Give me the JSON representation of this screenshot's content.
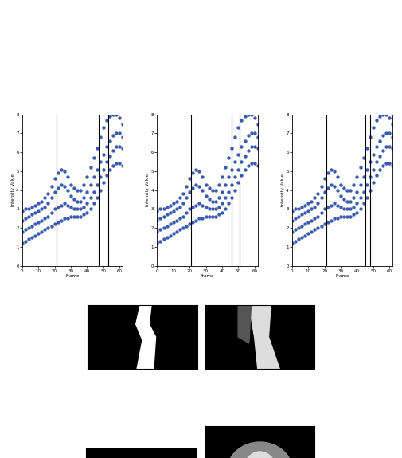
{
  "chart_data": [
    {
      "type": "scatter",
      "x_label": "Frame",
      "y_label": "Intensity Value",
      "x": [
        0,
        2,
        4,
        6,
        8,
        10,
        12,
        14,
        16,
        18,
        20,
        22,
        24,
        26,
        28,
        30,
        32,
        34,
        36,
        38,
        40,
        42,
        44,
        46,
        48,
        50,
        52,
        54,
        56,
        58,
        60,
        62
      ],
      "series": [
        {
          "color": "#3a5bb0",
          "marker": "o",
          "values": [
            1.2,
            1.3,
            1.4,
            1.5,
            1.6,
            1.7,
            1.8,
            1.9,
            2.0,
            2.1,
            2.2,
            2.3,
            2.4,
            2.5,
            2.5,
            2.6,
            2.6,
            2.6,
            2.6,
            2.7,
            2.8,
            3.0,
            3.3,
            3.6,
            4.0,
            4.4,
            4.8,
            5.1,
            5.3,
            5.4,
            5.4,
            5.3
          ]
        },
        {
          "color": "#3a5bb0",
          "marker": "o",
          "values": [
            1.8,
            1.9,
            2.0,
            2.1,
            2.2,
            2.3,
            2.4,
            2.5,
            2.6,
            2.8,
            3.0,
            3.1,
            3.2,
            3.3,
            3.2,
            3.1,
            3.0,
            3.0,
            3.0,
            3.1,
            3.3,
            3.6,
            3.9,
            4.3,
            4.7,
            5.1,
            5.5,
            5.8,
            6.1,
            6.3,
            6.3,
            6.2
          ]
        },
        {
          "color": "#3a5bb0",
          "marker": "o",
          "values": [
            2.4,
            2.5,
            2.6,
            2.7,
            2.8,
            2.9,
            3.0,
            3.1,
            3.3,
            3.6,
            3.9,
            4.1,
            4.3,
            4.2,
            4.0,
            3.7,
            3.5,
            3.4,
            3.4,
            3.6,
            3.9,
            4.3,
            4.7,
            5.1,
            5.5,
            5.9,
            6.3,
            6.6,
            6.9,
            7.0,
            7.0,
            6.8
          ]
        },
        {
          "color": "#3a5bb0",
          "marker": "o",
          "values": [
            2.9,
            3.0,
            3.0,
            3.1,
            3.2,
            3.3,
            3.4,
            3.6,
            3.8,
            4.2,
            4.6,
            4.9,
            5.1,
            5.0,
            4.7,
            4.3,
            4.1,
            4.0,
            4.0,
            4.3,
            4.7,
            5.2,
            5.7,
            6.2,
            6.8,
            7.3,
            7.7,
            7.9,
            8.0,
            8.0,
            7.8,
            7.5
          ]
        }
      ],
      "vlines": [
        21,
        47,
        53
      ],
      "xlim": [
        0,
        62
      ],
      "xticks": [
        0,
        10,
        20,
        30,
        40,
        50,
        60
      ],
      "ylim": [
        0,
        8
      ],
      "yticks": [
        0,
        1,
        2,
        3,
        4,
        5,
        6,
        7,
        8
      ]
    },
    {
      "type": "scatter",
      "x_label": "Frame",
      "y_label": "Intensity Value",
      "x": [
        0,
        2,
        4,
        6,
        8,
        10,
        12,
        14,
        16,
        18,
        20,
        22,
        24,
        26,
        28,
        30,
        32,
        34,
        36,
        38,
        40,
        42,
        44,
        46,
        48,
        50,
        52,
        54,
        56,
        58,
        60,
        62
      ],
      "series": [
        {
          "color": "#3a5bb0",
          "marker": "o",
          "values": [
            1.2,
            1.3,
            1.4,
            1.5,
            1.6,
            1.7,
            1.8,
            1.9,
            2.0,
            2.1,
            2.2,
            2.3,
            2.4,
            2.5,
            2.5,
            2.6,
            2.6,
            2.6,
            2.6,
            2.7,
            2.8,
            3.0,
            3.3,
            3.6,
            4.0,
            4.4,
            4.8,
            5.1,
            5.3,
            5.4,
            5.4,
            5.3
          ]
        },
        {
          "color": "#3a5bb0",
          "marker": "o",
          "values": [
            1.8,
            1.9,
            2.0,
            2.1,
            2.2,
            2.3,
            2.4,
            2.5,
            2.6,
            2.8,
            3.0,
            3.1,
            3.2,
            3.3,
            3.2,
            3.1,
            3.0,
            3.0,
            3.0,
            3.1,
            3.3,
            3.6,
            3.9,
            4.3,
            4.7,
            5.1,
            5.5,
            5.8,
            6.1,
            6.3,
            6.3,
            6.2
          ]
        },
        {
          "color": "#3a5bb0",
          "marker": "o",
          "values": [
            2.4,
            2.5,
            2.6,
            2.7,
            2.8,
            2.9,
            3.0,
            3.1,
            3.3,
            3.6,
            3.9,
            4.1,
            4.3,
            4.2,
            4.0,
            3.7,
            3.5,
            3.4,
            3.4,
            3.6,
            3.9,
            4.3,
            4.7,
            5.1,
            5.5,
            5.9,
            6.3,
            6.6,
            6.9,
            7.0,
            7.0,
            6.8
          ]
        },
        {
          "color": "#3a5bb0",
          "marker": "o",
          "values": [
            2.9,
            3.0,
            3.0,
            3.1,
            3.2,
            3.3,
            3.4,
            3.6,
            3.8,
            4.2,
            4.6,
            4.9,
            5.1,
            5.0,
            4.7,
            4.3,
            4.1,
            4.0,
            4.0,
            4.3,
            4.7,
            5.2,
            5.7,
            6.2,
            6.8,
            7.3,
            7.7,
            7.9,
            8.0,
            8.0,
            7.8,
            7.5
          ]
        }
      ],
      "vlines": [
        21,
        46,
        51
      ],
      "xlim": [
        0,
        62
      ],
      "xticks": [
        0,
        10,
        20,
        30,
        40,
        50,
        60
      ],
      "ylim": [
        0,
        8
      ],
      "yticks": [
        0,
        1,
        2,
        3,
        4,
        5,
        6,
        7,
        8
      ]
    },
    {
      "type": "scatter",
      "x_label": "Frame",
      "y_label": "Intensity Value",
      "x": [
        0,
        2,
        4,
        6,
        8,
        10,
        12,
        14,
        16,
        18,
        20,
        22,
        24,
        26,
        28,
        30,
        32,
        34,
        36,
        38,
        40,
        42,
        44,
        46,
        48,
        50,
        52,
        54,
        56,
        58,
        60,
        62
      ],
      "series": [
        {
          "color": "#3a5bb0",
          "marker": "o",
          "values": [
            1.2,
            1.3,
            1.4,
            1.5,
            1.6,
            1.7,
            1.8,
            1.9,
            2.0,
            2.1,
            2.2,
            2.3,
            2.4,
            2.5,
            2.5,
            2.6,
            2.6,
            2.6,
            2.6,
            2.7,
            2.8,
            3.0,
            3.3,
            3.6,
            4.0,
            4.4,
            4.8,
            5.1,
            5.3,
            5.4,
            5.4,
            5.3
          ]
        },
        {
          "color": "#3a5bb0",
          "marker": "o",
          "values": [
            1.8,
            1.9,
            2.0,
            2.1,
            2.2,
            2.3,
            2.4,
            2.5,
            2.6,
            2.8,
            3.0,
            3.1,
            3.2,
            3.3,
            3.2,
            3.1,
            3.0,
            3.0,
            3.0,
            3.1,
            3.3,
            3.6,
            3.9,
            4.3,
            4.7,
            5.1,
            5.5,
            5.8,
            6.1,
            6.3,
            6.3,
            6.2
          ]
        },
        {
          "color": "#3a5bb0",
          "marker": "o",
          "values": [
            2.4,
            2.5,
            2.6,
            2.7,
            2.8,
            2.9,
            3.0,
            3.1,
            3.3,
            3.6,
            3.9,
            4.1,
            4.3,
            4.2,
            4.0,
            3.7,
            3.5,
            3.4,
            3.4,
            3.6,
            3.9,
            4.3,
            4.7,
            5.1,
            5.5,
            5.9,
            6.3,
            6.6,
            6.9,
            7.0,
            7.0,
            6.8
          ]
        },
        {
          "color": "#3a5bb0",
          "marker": "o",
          "values": [
            2.9,
            3.0,
            3.0,
            3.1,
            3.2,
            3.3,
            3.4,
            3.6,
            3.8,
            4.2,
            4.6,
            4.9,
            5.1,
            5.0,
            4.7,
            4.3,
            4.1,
            4.0,
            4.0,
            4.3,
            4.7,
            5.2,
            5.7,
            6.2,
            6.8,
            7.3,
            7.7,
            7.9,
            8.0,
            8.0,
            7.8,
            7.5
          ]
        }
      ],
      "vlines": [
        21,
        45,
        48
      ],
      "xlim": [
        0,
        62
      ],
      "xticks": [
        0,
        10,
        20,
        30,
        40,
        50,
        60
      ],
      "ylim": [
        0,
        8
      ],
      "yticks": [
        0,
        1,
        2,
        3,
        4,
        5,
        6,
        7,
        8
      ]
    }
  ]
}
